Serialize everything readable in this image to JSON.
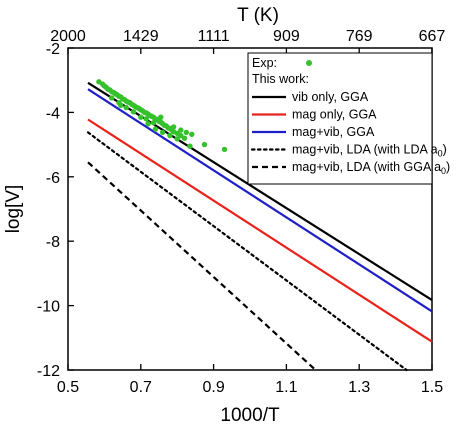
{
  "chart_data": {
    "type": "line",
    "xlabel": "1000/T",
    "ylabel": "log[V]",
    "top_xlabel": "T (K)",
    "xlim": [
      0.5,
      1.5
    ],
    "ylim": [
      -12,
      -2
    ],
    "xticks": [
      0.5,
      0.7,
      0.9,
      1.1,
      1.3,
      1.5
    ],
    "xtick_labels": [
      "0.5",
      "0.7",
      "0.9",
      "1.1",
      "1.3",
      "1.5"
    ],
    "yticks": [
      -12,
      -10,
      -8,
      -6,
      -4,
      -2
    ],
    "ytick_labels": [
      "-12",
      "-10",
      "-8",
      "-6",
      "-4",
      "-2"
    ],
    "top_ticks": [
      {
        "label": "2000",
        "x": 0.5
      },
      {
        "label": "1429",
        "x": 0.7
      },
      {
        "label": "1111",
        "x": 0.9
      },
      {
        "label": "909",
        "x": 1.1
      },
      {
        "label": "769",
        "x": 1.3
      },
      {
        "label": "667",
        "x": 1.5
      }
    ],
    "grid": false,
    "legend_position": "top-right",
    "legend": {
      "exp_label": "Exp:",
      "section_label": "This work:",
      "items": [
        {
          "label": "vib only, GGA",
          "color": "#000000",
          "dash": "solid"
        },
        {
          "label": "mag only, GGA",
          "color": "#e8221b",
          "dash": "solid"
        },
        {
          "label": "mag+vib, GGA",
          "color": "#1f1fc8",
          "dash": "solid"
        },
        {
          "label_pre": "mag+vib, LDA (with LDA a",
          "label_sub": "0",
          "label_post": ")",
          "color": "#000000",
          "dash": "dotted"
        },
        {
          "label_pre": "mag+vib, LDA (with GGA a",
          "label_sub": "0",
          "label_post": ")",
          "color": "#000000",
          "dash": "dashed"
        }
      ]
    },
    "series": [
      {
        "x": [
          0.555,
          1.5
        ],
        "y": [
          -3.08,
          -9.83
        ],
        "color": "#000000",
        "dash": "solid"
      },
      {
        "x": [
          0.555,
          1.5
        ],
        "y": [
          -4.22,
          -11.12
        ],
        "color": "#e8221b",
        "dash": "solid"
      },
      {
        "x": [
          0.555,
          1.5
        ],
        "y": [
          -3.28,
          -10.18
        ],
        "color": "#1f1fc8",
        "dash": "solid"
      },
      {
        "x": [
          0.555,
          1.43
        ],
        "y": [
          -4.62,
          -12.0
        ],
        "color": "#000000",
        "dash": "dotted"
      },
      {
        "x": [
          0.555,
          1.18
        ],
        "y": [
          -5.55,
          -12.0
        ],
        "color": "#000000",
        "dash": "dashed"
      }
    ],
    "experiment": {
      "color": "#35c12c",
      "points": [
        [
          0.585,
          -3.05
        ],
        [
          0.595,
          -3.12
        ],
        [
          0.6,
          -3.18
        ],
        [
          0.605,
          -3.22
        ],
        [
          0.61,
          -3.28
        ],
        [
          0.615,
          -3.3
        ],
        [
          0.62,
          -3.36
        ],
        [
          0.625,
          -3.38
        ],
        [
          0.63,
          -3.42
        ],
        [
          0.635,
          -3.45
        ],
        [
          0.64,
          -3.5
        ],
        [
          0.645,
          -3.52
        ],
        [
          0.65,
          -3.58
        ],
        [
          0.655,
          -3.6
        ],
        [
          0.66,
          -3.65
        ],
        [
          0.665,
          -3.68
        ],
        [
          0.67,
          -3.7
        ],
        [
          0.675,
          -3.75
        ],
        [
          0.68,
          -3.78
        ],
        [
          0.685,
          -3.82
        ],
        [
          0.69,
          -3.85
        ],
        [
          0.695,
          -3.88
        ],
        [
          0.7,
          -3.92
        ],
        [
          0.705,
          -3.95
        ],
        [
          0.71,
          -4.0
        ],
        [
          0.715,
          -4.02
        ],
        [
          0.72,
          -4.05
        ],
        [
          0.725,
          -4.1
        ],
        [
          0.73,
          -4.12
        ],
        [
          0.735,
          -4.15
        ],
        [
          0.74,
          -4.2
        ],
        [
          0.745,
          -4.22
        ],
        [
          0.75,
          -4.28
        ],
        [
          0.755,
          -4.3
        ],
        [
          0.76,
          -4.35
        ],
        [
          0.765,
          -4.4
        ],
        [
          0.77,
          -4.42
        ],
        [
          0.775,
          -4.48
        ],
        [
          0.78,
          -4.5
        ],
        [
          0.785,
          -4.55
        ],
        [
          0.79,
          -4.6
        ],
        [
          0.8,
          -4.65
        ],
        [
          0.81,
          -4.72
        ],
        [
          0.82,
          -4.8
        ],
        [
          0.835,
          -5.05
        ],
        [
          0.72,
          -4.35
        ],
        [
          0.74,
          -4.52
        ],
        [
          0.76,
          -4.62
        ],
        [
          0.78,
          -4.72
        ],
        [
          0.8,
          -4.82
        ],
        [
          0.7,
          -4.15
        ],
        [
          0.68,
          -3.98
        ],
        [
          0.66,
          -3.85
        ],
        [
          0.64,
          -3.7
        ],
        [
          0.62,
          -3.55
        ],
        [
          0.645,
          -3.78
        ],
        [
          0.79,
          -4.45
        ],
        [
          0.81,
          -4.55
        ],
        [
          0.825,
          -4.62
        ],
        [
          0.84,
          -4.68
        ],
        [
          0.875,
          -5.0
        ],
        [
          0.93,
          -5.15
        ],
        [
          0.755,
          -4.15
        ],
        [
          0.735,
          -4.32
        ],
        [
          0.715,
          -4.2
        ]
      ]
    }
  }
}
